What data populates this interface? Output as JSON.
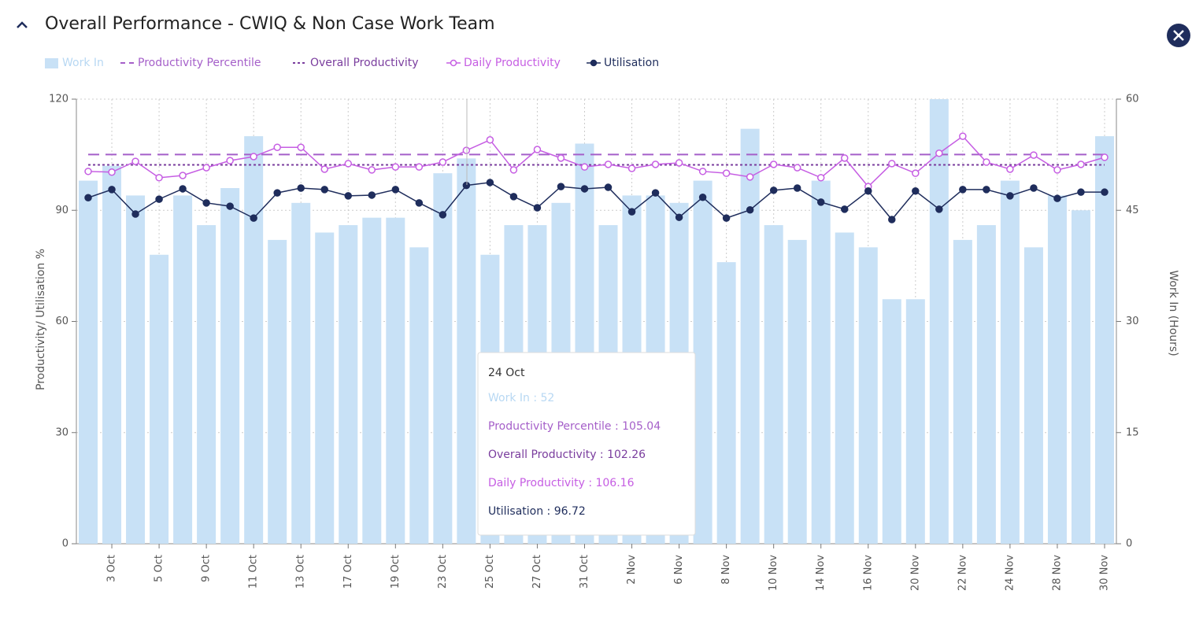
{
  "chart_data": {
    "type": "bar-line",
    "title": "Overall Performance - CWIQ & Non Case Work Team",
    "ylabel": "Productivity/ Utilisation %",
    "y2label": "Work In (Hours)",
    "categories": [
      null,
      "3 Oct",
      null,
      "5 Oct",
      null,
      "9 Oct",
      null,
      "11 Oct",
      null,
      "13 Oct",
      null,
      "17 Oct",
      null,
      "19 Oct",
      null,
      "23 Oct",
      null,
      "25 Oct",
      null,
      "27 Oct",
      null,
      "31 Oct",
      null,
      "2 Nov",
      null,
      "6 Nov",
      null,
      "8 Nov",
      null,
      "10 Nov",
      null,
      "14 Nov",
      null,
      "16 Nov",
      null,
      "20 Nov",
      null,
      "22 Nov",
      null,
      "24 Nov",
      null,
      "28 Nov",
      null,
      "30 Nov"
    ],
    "series": [
      {
        "name": "Work In",
        "kind": "bar",
        "axis": "y2",
        "color": "#c8e1f6",
        "values": [
          49,
          51,
          47,
          39,
          47,
          43,
          48,
          55,
          41,
          46,
          42,
          43,
          44,
          44,
          40,
          50,
          52,
          39,
          43,
          43,
          46,
          54,
          43,
          47,
          47,
          46,
          49,
          38,
          56,
          43,
          41,
          49,
          42,
          40,
          33,
          33,
          60,
          41,
          43,
          49,
          40,
          47,
          45,
          55
        ]
      },
      {
        "name": "Productivity Percentile",
        "kind": "hline",
        "color": "#a55fc9",
        "value": 105.04
      },
      {
        "name": "Overall Productivity",
        "kind": "hline-dotted",
        "color": "#7a3d9e",
        "value": 102.26
      },
      {
        "name": "Daily Productivity",
        "kind": "line-open",
        "color": "#c65ee3",
        "values": [
          100.5,
          100.3,
          103.2,
          98.8,
          99.4,
          101.5,
          103.4,
          104.5,
          107,
          107,
          101.1,
          102.6,
          100.9,
          101.7,
          101.7,
          103,
          106.16,
          109,
          100.9,
          106.4,
          104.1,
          101.7,
          102.4,
          101.3,
          102.4,
          102.8,
          100.5,
          100,
          99,
          102.4,
          101.5,
          98.8,
          104.1,
          96.4,
          102.6,
          100,
          105.4,
          110,
          103,
          101.1,
          104.9,
          100.9,
          102.4,
          104.3
        ]
      },
      {
        "name": "Utilisation",
        "kind": "line-filled",
        "color": "#1f2d5c",
        "values": [
          93.4,
          95.6,
          89,
          93,
          95.8,
          92,
          91.1,
          87.9,
          94.7,
          96,
          95.6,
          93.9,
          94.1,
          95.6,
          92,
          88.8,
          96.72,
          97.5,
          93.7,
          90.7,
          96.4,
          95.8,
          96.2,
          89.6,
          94.7,
          88.1,
          93.5,
          87.9,
          90.1,
          95.4,
          96,
          92.2,
          90.3,
          95.2,
          87.5,
          95.2,
          90.3,
          95.6,
          95.6,
          93.9,
          96,
          93.2,
          94.9,
          94.9
        ]
      }
    ],
    "ylim": [
      0,
      120
    ],
    "yticks": [
      0,
      30,
      60,
      90,
      120
    ],
    "y2lim": [
      0,
      60
    ],
    "y2ticks": [
      0,
      15,
      30,
      45,
      60
    ],
    "grid": true,
    "legend": "top-left",
    "tooltip": {
      "title": "24 Oct",
      "items": [
        "Work In : 52",
        "Productivity Percentile : 105.04",
        "Overall Productivity : 102.26",
        "Daily Productivity : 106.16",
        "Utilisation : 96.72"
      ]
    }
  }
}
